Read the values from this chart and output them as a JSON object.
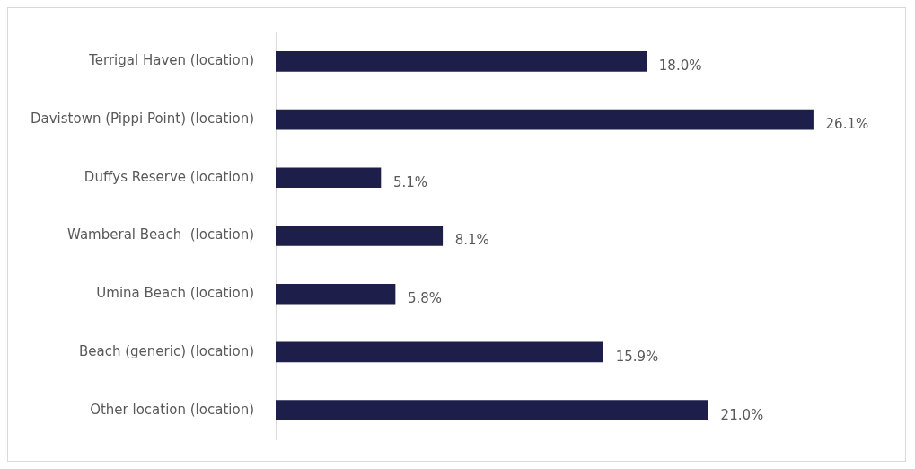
{
  "chart_data": {
    "type": "bar",
    "orientation": "horizontal",
    "categories": [
      "Terrigal Haven (location)",
      "Davistown (Pippi Point) (location)",
      "Duffys Reserve (location)",
      "Wamberal Beach  (location)",
      "Umina Beach (location)",
      "Beach (generic) (location)",
      "Other location (location)"
    ],
    "values": [
      18.0,
      26.1,
      5.1,
      8.1,
      5.8,
      15.9,
      21.0
    ],
    "value_labels": [
      "18.0%",
      "26.1%",
      "5.1%",
      "8.1%",
      "5.8%",
      "15.9%",
      "21.0%"
    ],
    "color": "#1e1e4b",
    "legend": false
  }
}
